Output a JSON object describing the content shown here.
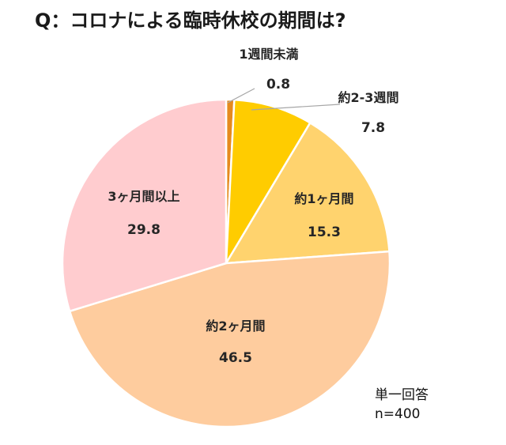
{
  "title": "Q：コロナによる臨時休校の期間は?",
  "chart_data": {
    "type": "pie",
    "slices": [
      {
        "label": "1週間未満",
        "value": 0.8,
        "color": "#E58A1E"
      },
      {
        "label": "約2-3週間",
        "value": 7.8,
        "color": "#FFCC00"
      },
      {
        "label": "約1ヶ月間",
        "value": 15.3,
        "color": "#FFD36E"
      },
      {
        "label": "約2ヶ月間",
        "value": 46.5,
        "color": "#FECC9E"
      },
      {
        "label": "3ヶ月間以上",
        "value": 29.8,
        "color": "#FFCCCF"
      }
    ]
  },
  "note": {
    "line1": "単一回答",
    "line2": "n=400"
  }
}
